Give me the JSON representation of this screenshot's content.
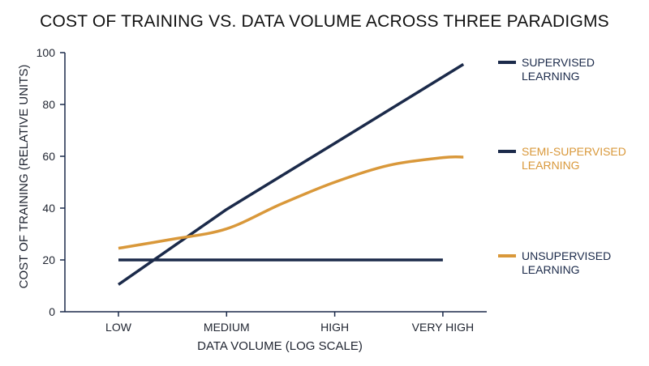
{
  "chart_data": {
    "type": "line",
    "title": "COST OF TRAINING VS. DATA VOLUME ACROSS THREE PARADIGMS",
    "xlabel": "DATA VOLUME (LOG SCALE)",
    "ylabel": "COST OF TRAINING (RELATIVE UNITS)",
    "categories": [
      "LOW",
      "MEDIUM",
      "HIGH",
      "VERY HIGH"
    ],
    "ylim": [
      0,
      100
    ],
    "yticks": [
      0,
      20,
      40,
      60,
      80,
      100
    ],
    "grid": false,
    "legend_position": "right",
    "series": [
      {
        "name": "SUPERVISED LEARNING",
        "name_lines": [
          "SUPERVISED",
          "LEARNING"
        ],
        "color": "#1b2a4a",
        "legend_text_color": "#1b2a4a",
        "legend_line_color": "#1b2a4a",
        "smooth": false,
        "x": [
          0,
          1,
          2,
          3.19
        ],
        "y": [
          10.5,
          39.5,
          65,
          95.5
        ]
      },
      {
        "name": "SEMI-SUPERVISED LEARNING",
        "name_lines": [
          "SEMI-SUPERVISED",
          "LEARNING"
        ],
        "color": "#d9983a",
        "legend_text_color": "#d9983a",
        "legend_line_color": "#1b2a4a",
        "smooth": true,
        "x": [
          0,
          0.5,
          1,
          1.5,
          2,
          2.5,
          3,
          3.19
        ],
        "y": [
          24.5,
          28,
          32,
          41.5,
          50,
          56.5,
          59.5,
          59.7
        ]
      },
      {
        "name": "UNSUPERVISED LEARNING",
        "name_lines": [
          "UNSUPERVISED",
          "LEARNING"
        ],
        "color": "#1b2a4a",
        "legend_text_color": "#1b2a4a",
        "legend_line_color": "#d9983a",
        "smooth": false,
        "x": [
          0,
          3
        ],
        "y": [
          20,
          20
        ]
      }
    ]
  }
}
